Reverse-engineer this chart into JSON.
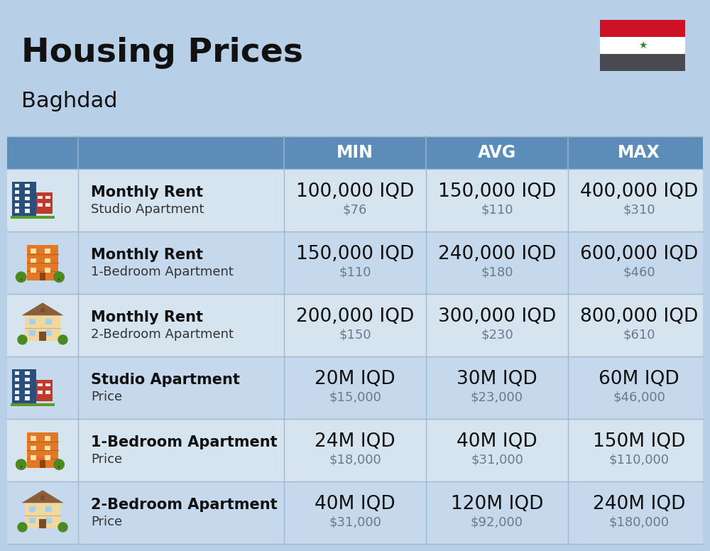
{
  "title": "Housing Prices",
  "subtitle": "Baghdad",
  "background_color": "#b8cfe8",
  "header_color": "#5b8db8",
  "header_text_color": "#ffffff",
  "row_colors": [
    "#d6e4f0",
    "#c5d8ec"
  ],
  "separator_color": "#a0b8d0",
  "col_headers": [
    "MIN",
    "AVG",
    "MAX"
  ],
  "rows": [
    {
      "icon_type": "studio_blue",
      "label_bold": "Monthly Rent",
      "label_sub": "Studio Apartment",
      "min_iqd": "100,000 IQD",
      "min_usd": "$76",
      "avg_iqd": "150,000 IQD",
      "avg_usd": "$110",
      "max_iqd": "400,000 IQD",
      "max_usd": "$310"
    },
    {
      "icon_type": "bedroom1_orange",
      "label_bold": "Monthly Rent",
      "label_sub": "1-Bedroom Apartment",
      "min_iqd": "150,000 IQD",
      "min_usd": "$110",
      "avg_iqd": "240,000 IQD",
      "avg_usd": "$180",
      "max_iqd": "600,000 IQD",
      "max_usd": "$460"
    },
    {
      "icon_type": "bedroom2_brown",
      "label_bold": "Monthly Rent",
      "label_sub": "2-Bedroom Apartment",
      "min_iqd": "200,000 IQD",
      "min_usd": "$150",
      "avg_iqd": "300,000 IQD",
      "avg_usd": "$230",
      "max_iqd": "800,000 IQD",
      "max_usd": "$610"
    },
    {
      "icon_type": "studio_blue",
      "label_bold": "Studio Apartment",
      "label_sub": "Price",
      "min_iqd": "20M IQD",
      "min_usd": "$15,000",
      "avg_iqd": "30M IQD",
      "avg_usd": "$23,000",
      "max_iqd": "60M IQD",
      "max_usd": "$46,000"
    },
    {
      "icon_type": "bedroom1_orange",
      "label_bold": "1-Bedroom Apartment",
      "label_sub": "Price",
      "min_iqd": "24M IQD",
      "min_usd": "$18,000",
      "avg_iqd": "40M IQD",
      "avg_usd": "$31,000",
      "max_iqd": "150M IQD",
      "max_usd": "$110,000"
    },
    {
      "icon_type": "bedroom2_brown",
      "label_bold": "2-Bedroom Apartment",
      "label_sub": "Price",
      "min_iqd": "40M IQD",
      "min_usd": "$31,000",
      "avg_iqd": "120M IQD",
      "avg_usd": "$92,000",
      "max_iqd": "240M IQD",
      "max_usd": "$180,000"
    }
  ],
  "title_fontsize": 34,
  "subtitle_fontsize": 22,
  "header_fontsize": 17,
  "cell_fontsize_main": 19,
  "cell_fontsize_sub": 13,
  "label_fontsize_bold": 15,
  "label_fontsize_sub": 13
}
